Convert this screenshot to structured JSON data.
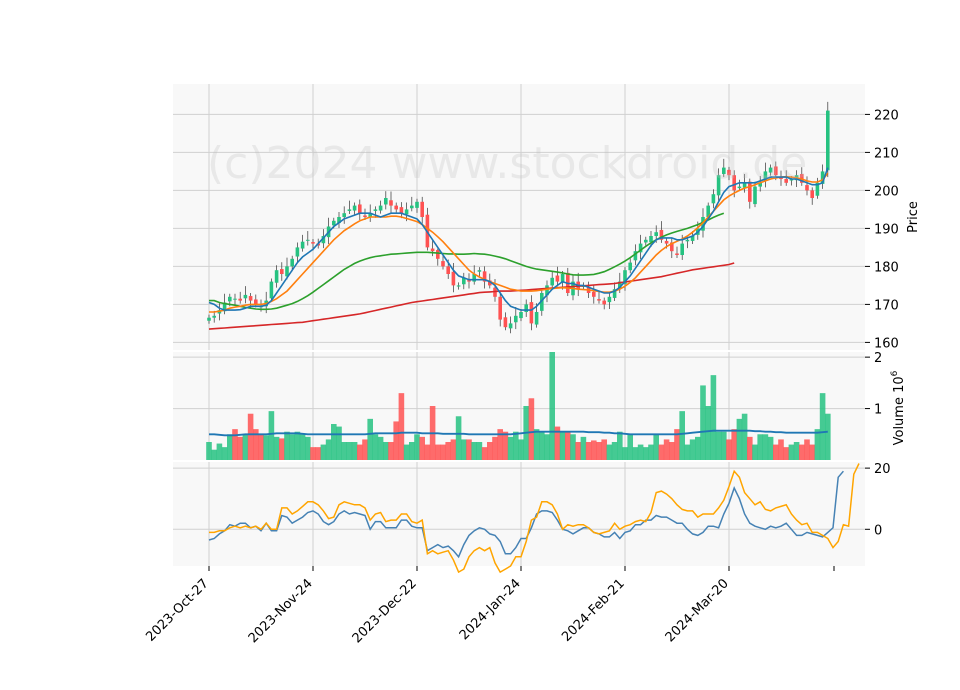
{
  "watermark": "(c)2024 www.stockdroid.de",
  "colors": {
    "up": "#26c281",
    "down": "#ff5252",
    "ma_fast": "#1f77b4",
    "ma_mid": "#ff7f0e",
    "ma_slow": "#2ca02c",
    "ma_long": "#d62728",
    "vol_ma": "#1f77b4",
    "osc_a": "#4682b4",
    "osc_b": "#ffa500",
    "panel_bg": "#f8f8f8",
    "grid": "#d0d0d0"
  },
  "chart_data": [
    {
      "type": "candlestick",
      "panel": "price",
      "ylabel": "Price",
      "ylim": [
        158,
        228
      ],
      "yticks": [
        160,
        170,
        180,
        190,
        200,
        210,
        220
      ],
      "xticks": [
        "2023-Oct-27",
        "2023-Nov-24",
        "2023-Dec-22",
        "2024-Jan-24",
        "2024-Feb-21",
        "2024-Mar-20"
      ],
      "xtick_index": [
        0,
        20,
        40,
        60,
        80,
        100
      ],
      "dates_note": "trading-day index 0..119",
      "close": [
        166.5,
        167,
        168.5,
        170.5,
        172,
        171.5,
        171,
        172.5,
        171,
        170,
        169.5,
        171,
        176,
        179,
        178,
        180,
        182,
        185,
        186.5,
        187,
        186,
        185.5,
        188,
        190.5,
        192,
        193,
        194,
        195,
        196,
        194,
        193,
        194,
        195,
        196,
        198,
        196,
        195,
        194,
        195,
        196,
        197,
        193,
        185,
        184,
        182,
        180,
        178,
        175,
        175,
        177,
        176,
        178,
        179,
        176,
        175,
        172,
        166,
        164,
        165,
        167,
        168,
        170,
        165,
        168,
        173,
        175,
        177,
        176,
        178,
        173,
        176,
        174,
        175,
        173,
        172,
        171,
        170,
        172,
        174,
        176,
        179,
        181,
        184,
        186,
        187,
        188,
        189,
        187,
        186,
        184,
        183,
        186,
        187,
        188,
        190,
        193,
        196,
        199,
        204,
        206,
        204,
        200,
        201,
        202,
        197,
        201,
        202,
        205,
        206,
        204,
        203,
        202,
        203,
        204,
        202,
        200,
        198,
        202,
        205,
        221
      ],
      "ma_fast": [
        170.5,
        170,
        169,
        168.5,
        168.5,
        168.5,
        168.6,
        169,
        169.5,
        169.5,
        169.5,
        169.8,
        171,
        173,
        175,
        177,
        179,
        181,
        182.5,
        183.5,
        184.5,
        186,
        187.5,
        189,
        190.5,
        191.5,
        192.5,
        193,
        193.5,
        194,
        194,
        194,
        193.5,
        193,
        193.5,
        194,
        194,
        194,
        193.5,
        193,
        192.5,
        191,
        189,
        187,
        185,
        183,
        181,
        179,
        177.5,
        177,
        176.5,
        176.5,
        176.5,
        176.5,
        176,
        175,
        173,
        171,
        169.5,
        169,
        168.5,
        168.5,
        168.5,
        169.5,
        171,
        172.5,
        174,
        175,
        176,
        175.5,
        175.5,
        175,
        175,
        174.5,
        174,
        173.5,
        173,
        173,
        173.5,
        174.5,
        176,
        177.5,
        179.5,
        181.5,
        183.5,
        185.5,
        187,
        187.5,
        187.5,
        187.5,
        187,
        187,
        187.5,
        188,
        189,
        190.5,
        192.5,
        194.5,
        197,
        199.5,
        201,
        201.5,
        202,
        202,
        202,
        202,
        202.5,
        203,
        203.5,
        203.5,
        203.5,
        203.5,
        203,
        203,
        202.5,
        202,
        201.5,
        201.5,
        202,
        206
      ],
      "ma_mid": [
        168,
        168,
        168.2,
        168.5,
        169,
        169.3,
        169.5,
        169.8,
        170,
        170,
        170,
        170.2,
        170.8,
        171.5,
        172.5,
        173.5,
        175,
        176.5,
        178,
        179.5,
        181,
        182.5,
        184,
        185.5,
        187,
        188.2,
        189.4,
        190.3,
        191.2,
        192,
        192.5,
        193,
        193,
        193,
        193,
        193.2,
        193.2,
        193,
        192.6,
        192.2,
        191.8,
        191,
        190,
        189,
        187.8,
        186.5,
        185,
        183.5,
        182,
        180.5,
        179,
        178,
        177.2,
        176.6,
        176,
        175.5,
        175,
        174.5,
        174,
        173.8,
        173.5,
        173.5,
        173.5,
        173.6,
        173.8,
        174,
        174.2,
        174.3,
        174.4,
        174.3,
        174.2,
        174,
        173.9,
        173.8,
        173.6,
        173.4,
        173.2,
        173.2,
        173.5,
        174,
        174.8,
        175.8,
        177,
        178.5,
        180,
        181.5,
        183,
        184.2,
        185.2,
        186,
        186.6,
        187.2,
        188,
        189,
        190.2,
        191.5,
        193,
        194.5,
        196,
        197.5,
        198.5,
        199.3,
        200,
        200.6,
        201,
        201.5,
        202,
        202.5,
        203,
        203.3,
        203.5,
        203.6,
        203.5,
        203.3,
        203,
        202.5,
        202.2,
        202.2,
        202.8,
        204.5
      ],
      "ma_slow": [
        171,
        171,
        170.5,
        170.2,
        170,
        169.8,
        169.5,
        169.2,
        169,
        168.8,
        168.7,
        168.7,
        168.8,
        169,
        169.4,
        169.8,
        170.2,
        170.8,
        171.5,
        172.3,
        173.2,
        174.2,
        175.2,
        176.2,
        177.2,
        178.2,
        179.2,
        180,
        180.8,
        181.4,
        181.9,
        182.3,
        182.6,
        182.8,
        183,
        183.2,
        183.3,
        183.4,
        183.5,
        183.6,
        183.7,
        183.7,
        183.7,
        183.6,
        183.5,
        183.4,
        183.3,
        183.3,
        183.2,
        183.2,
        183.3,
        183.4,
        183.3,
        183.2,
        183,
        182.7,
        182.4,
        182,
        181.5,
        181,
        180.5,
        180,
        179.6,
        179.3,
        179.1,
        178.9,
        178.7,
        178.5,
        178.3,
        178,
        177.8,
        177.7,
        177.7,
        177.8,
        177.9,
        178.2,
        178.6,
        179.2,
        179.9,
        180.6,
        181.4,
        182.3,
        183.3,
        184.3,
        185.3,
        186.2,
        187,
        187.7,
        188.3,
        188.8,
        189.2,
        189.6,
        190,
        190.5,
        191,
        191.6,
        192.2,
        192.9,
        193.5,
        194
      ],
      "ma_long": [
        163.5,
        163.6,
        163.7,
        163.8,
        163.9,
        164,
        164.1,
        164.2,
        164.3,
        164.4,
        164.5,
        164.6,
        164.7,
        164.8,
        164.9,
        165,
        165.1,
        165.2,
        165.3,
        165.5,
        165.7,
        165.9,
        166.1,
        166.3,
        166.5,
        166.7,
        166.9,
        167.1,
        167.3,
        167.5,
        167.8,
        168.1,
        168.4,
        168.7,
        169,
        169.3,
        169.6,
        169.9,
        170.2,
        170.5,
        170.7,
        170.9,
        171.1,
        171.3,
        171.5,
        171.7,
        171.9,
        172.1,
        172.3,
        172.5,
        172.7,
        172.9,
        173.1,
        173.2,
        173.3,
        173.4,
        173.5,
        173.5,
        173.5,
        173.6,
        173.7,
        173.8,
        173.9,
        174,
        174.1,
        174.2,
        174.3,
        174.4,
        174.5,
        174.6,
        174.7,
        174.8,
        174.9,
        175,
        175.1,
        175.2,
        175.3,
        175.4,
        175.5,
        175.7,
        175.9,
        176.1,
        176.3,
        176.5,
        176.7,
        176.9,
        177.1,
        177.3,
        177.6,
        177.9,
        178.2,
        178.5,
        178.8,
        179.1,
        179.3,
        179.5,
        179.7,
        179.9,
        180.1,
        180.3,
        180.5,
        180.9
      ]
    },
    {
      "type": "bar",
      "panel": "volume",
      "ylabel": "Volume  10^6",
      "ylim": [
        0,
        2.1
      ],
      "yticks": [
        1,
        2
      ],
      "volume": [
        0.35,
        0.2,
        0.32,
        0.25,
        0.5,
        0.6,
        0.45,
        0.5,
        0.9,
        0.6,
        0.5,
        0.48,
        0.95,
        0.45,
        0.42,
        0.55,
        0.5,
        0.55,
        0.5,
        0.45,
        0.25,
        0.25,
        0.3,
        0.4,
        0.7,
        0.65,
        0.35,
        0.35,
        0.35,
        0.3,
        0.4,
        0.8,
        0.5,
        0.45,
        0.35,
        0.35,
        0.75,
        1.3,
        0.3,
        0.35,
        0.5,
        0.45,
        0.3,
        1.05,
        0.3,
        0.3,
        0.35,
        0.4,
        0.85,
        0.4,
        0.4,
        0.35,
        0.35,
        0.25,
        0.35,
        0.45,
        0.6,
        0.55,
        0.45,
        0.55,
        0.4,
        1.05,
        1.2,
        0.6,
        0.55,
        0.5,
        2.1,
        0.65,
        0.55,
        0.55,
        0.5,
        0.35,
        0.45,
        0.35,
        0.38,
        0.35,
        0.4,
        0.3,
        0.35,
        0.55,
        0.25,
        0.5,
        0.25,
        0.3,
        0.25,
        0.3,
        0.5,
        0.3,
        0.4,
        0.35,
        0.6,
        0.95,
        0.3,
        0.4,
        0.45,
        1.45,
        1.05,
        1.65,
        0.55,
        0.55,
        0.4,
        0.6,
        0.8,
        0.9,
        0.45,
        0.3,
        0.5,
        0.5,
        0.45,
        0.3,
        0.4,
        0.25,
        0.3,
        0.35,
        0.3,
        0.4,
        0.3,
        0.6,
        1.3,
        0.9
      ],
      "vol_ma": [
        0.5,
        0.5,
        0.49,
        0.48,
        0.48,
        0.48,
        0.49,
        0.5,
        0.5,
        0.5,
        0.5,
        0.5,
        0.51,
        0.52,
        0.52,
        0.52,
        0.52,
        0.52,
        0.51,
        0.5,
        0.5,
        0.5,
        0.5,
        0.5,
        0.5,
        0.5,
        0.5,
        0.5,
        0.5,
        0.5,
        0.5,
        0.51,
        0.52,
        0.52,
        0.52,
        0.52,
        0.52,
        0.53,
        0.53,
        0.53,
        0.53,
        0.52,
        0.52,
        0.52,
        0.52,
        0.51,
        0.51,
        0.51,
        0.51,
        0.51,
        0.5,
        0.5,
        0.5,
        0.5,
        0.5,
        0.5,
        0.5,
        0.5,
        0.5,
        0.51,
        0.52,
        0.53,
        0.54,
        0.55,
        0.55,
        0.55,
        0.55,
        0.55,
        0.55,
        0.55,
        0.55,
        0.55,
        0.55,
        0.54,
        0.54,
        0.54,
        0.53,
        0.53,
        0.52,
        0.52,
        0.51,
        0.5,
        0.5,
        0.5,
        0.5,
        0.5,
        0.5,
        0.5,
        0.5,
        0.5,
        0.5,
        0.51,
        0.52,
        0.53,
        0.54,
        0.55,
        0.56,
        0.57,
        0.57,
        0.57,
        0.57,
        0.57,
        0.57,
        0.57,
        0.57,
        0.56,
        0.56,
        0.55,
        0.55,
        0.54,
        0.54,
        0.53,
        0.53,
        0.53,
        0.53,
        0.53,
        0.53,
        0.53,
        0.54,
        0.55
      ]
    },
    {
      "type": "line",
      "panel": "oscillator",
      "ylim": [
        -12,
        22
      ],
      "yticks": [
        0,
        20
      ],
      "series": [
        {
          "key": "osc_a",
          "values": [
            -3.5,
            -3,
            -1.5,
            -0.5,
            1.5,
            1,
            2,
            2,
            0.5,
            1,
            -0.5,
            2,
            -0.5,
            -0.5,
            4.5,
            4,
            2,
            3,
            4,
            5.5,
            6,
            5,
            2.5,
            1.5,
            2.5,
            5,
            6,
            5,
            5.5,
            5,
            4.5,
            0,
            2.5,
            2.5,
            0.5,
            0.5,
            0.5,
            3,
            3,
            1,
            0.5,
            0.5,
            -7,
            -6,
            -5,
            -6,
            -5.5,
            -7,
            -9,
            -5,
            -2,
            -0.5,
            0.5,
            0,
            -1.5,
            -2,
            -4,
            -8,
            -8,
            -6,
            -3,
            -3,
            0.5,
            5,
            6,
            6,
            5.5,
            3,
            0,
            -0.5,
            -1.5,
            -0.5,
            0.5,
            0.5,
            -1,
            -1.5,
            -2.5,
            -2.5,
            -1,
            -3,
            -1,
            -0.5,
            1.5,
            1.5,
            3,
            3,
            4.5,
            4,
            4,
            3,
            2,
            2,
            0,
            -1.5,
            -2,
            -1,
            1,
            1,
            0.5,
            5,
            8.5,
            13.5,
            10,
            5,
            2,
            1,
            0.5,
            0,
            1,
            0.5,
            1,
            2,
            0,
            -2,
            -2,
            -1,
            -1.5,
            -2,
            -2.5,
            -1,
            0.5,
            17,
            19
          ]
        },
        {
          "key": "osc_b",
          "values": [
            -1,
            -1,
            -0.5,
            -0.5,
            0.5,
            1,
            0.5,
            1,
            0.5,
            1,
            0,
            2,
            0,
            0,
            7,
            7,
            5,
            6,
            7.5,
            9,
            9,
            8,
            6,
            3.5,
            4,
            8,
            9,
            8.5,
            8,
            8,
            7,
            3,
            5,
            5.5,
            2.5,
            3,
            3,
            5,
            5,
            2.5,
            2,
            3,
            -8,
            -7,
            -8,
            -7.5,
            -7,
            -10,
            -14,
            -13,
            -9,
            -7,
            -6,
            -7,
            -6,
            -11,
            -14,
            -13,
            -12,
            -9,
            -9,
            -4,
            3,
            4,
            9,
            9,
            8,
            5,
            0,
            1.5,
            1,
            1.5,
            1.5,
            0.5,
            -1,
            -1.5,
            -1,
            -0.5,
            2,
            0,
            1,
            1.5,
            2.5,
            3,
            2.5,
            5.5,
            12,
            12.5,
            11.5,
            10,
            8,
            6.5,
            6,
            6,
            4,
            5,
            5,
            5,
            7,
            9.5,
            14,
            19,
            17,
            12,
            10,
            8,
            9,
            6.5,
            6,
            7,
            7.5,
            8,
            5,
            3,
            1.5,
            2,
            -1,
            -1,
            -2,
            -3,
            -6,
            -4,
            1.5,
            1,
            18,
            21.5
          ]
        }
      ]
    }
  ]
}
